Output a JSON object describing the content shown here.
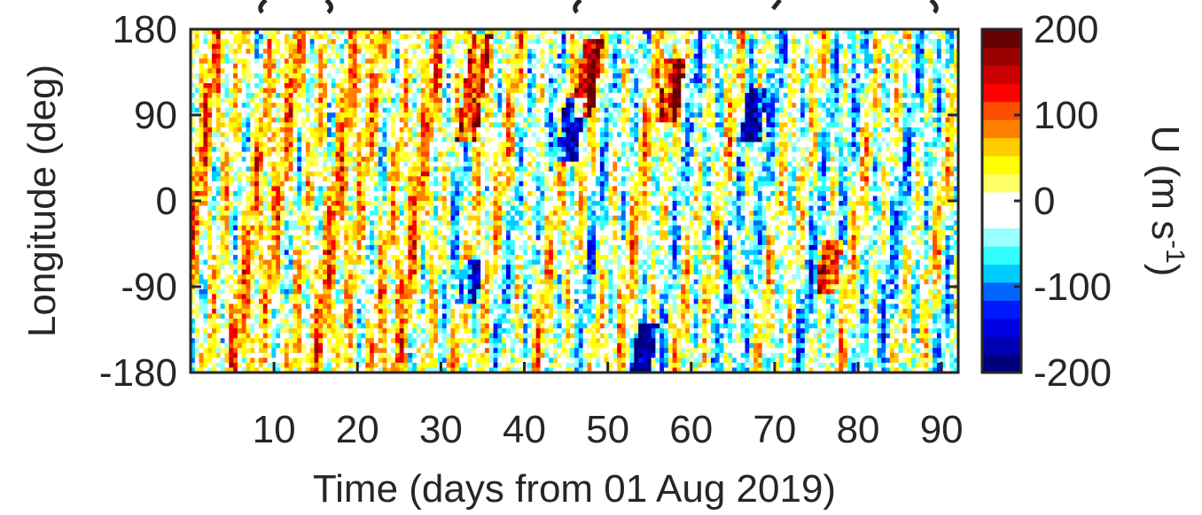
{
  "chart_data": {
    "type": "heatmap",
    "title": "",
    "xlabel": "Time (days from 01 Aug 2019)",
    "ylabel": "Longitude (deg)",
    "xlim": [
      0,
      92
    ],
    "ylim": [
      -180,
      180
    ],
    "x_ticks": [
      10,
      20,
      30,
      40,
      50,
      60,
      70,
      80,
      90
    ],
    "y_ticks": [
      180,
      90,
      0,
      -90,
      -180
    ],
    "colorbar": {
      "label": "U (m s",
      "label_exponent": "-1",
      "label_close": ")",
      "range": [
        -200,
        200
      ],
      "ticks": [
        200,
        100,
        0,
        -100,
        -200
      ],
      "levels": 16,
      "colors": [
        "#00007f",
        "#0000b2",
        "#0000e5",
        "#0019ff",
        "#0066ff",
        "#00ccff",
        "#33ffff",
        "#99ffff",
        "#ffffff",
        "#ffffff",
        "#ffff66",
        "#ffff00",
        "#ffcc00",
        "#ff8000",
        "#ff4d00",
        "#ff0000",
        "#cc0000",
        "#990000",
        "#660000"
      ]
    },
    "field_summary": "Zonal wind U varies in roughly +/-100 m/s streaks tilted eastward with time; stronger red/positive streaks around days 30-60 at 60-180 deg longitude, blue/negative patches around days 40-80",
    "streaks": [
      {
        "day": 33,
        "lon_start": 60,
        "lon_end": 175,
        "value": 160
      },
      {
        "day": 47,
        "lon_start": 90,
        "lon_end": 170,
        "value": 150
      },
      {
        "day": 57,
        "lon_start": 80,
        "lon_end": 150,
        "value": 140
      },
      {
        "day": 76,
        "lon_start": -100,
        "lon_end": -40,
        "value": 140
      },
      {
        "day": 45,
        "lon_start": 40,
        "lon_end": 110,
        "value": -170
      },
      {
        "day": 54,
        "lon_start": -180,
        "lon_end": -130,
        "value": -180
      },
      {
        "day": 33,
        "lon_start": -110,
        "lon_end": -60,
        "value": -150
      },
      {
        "day": 67,
        "lon_start": 60,
        "lon_end": 120,
        "value": -140
      }
    ]
  }
}
